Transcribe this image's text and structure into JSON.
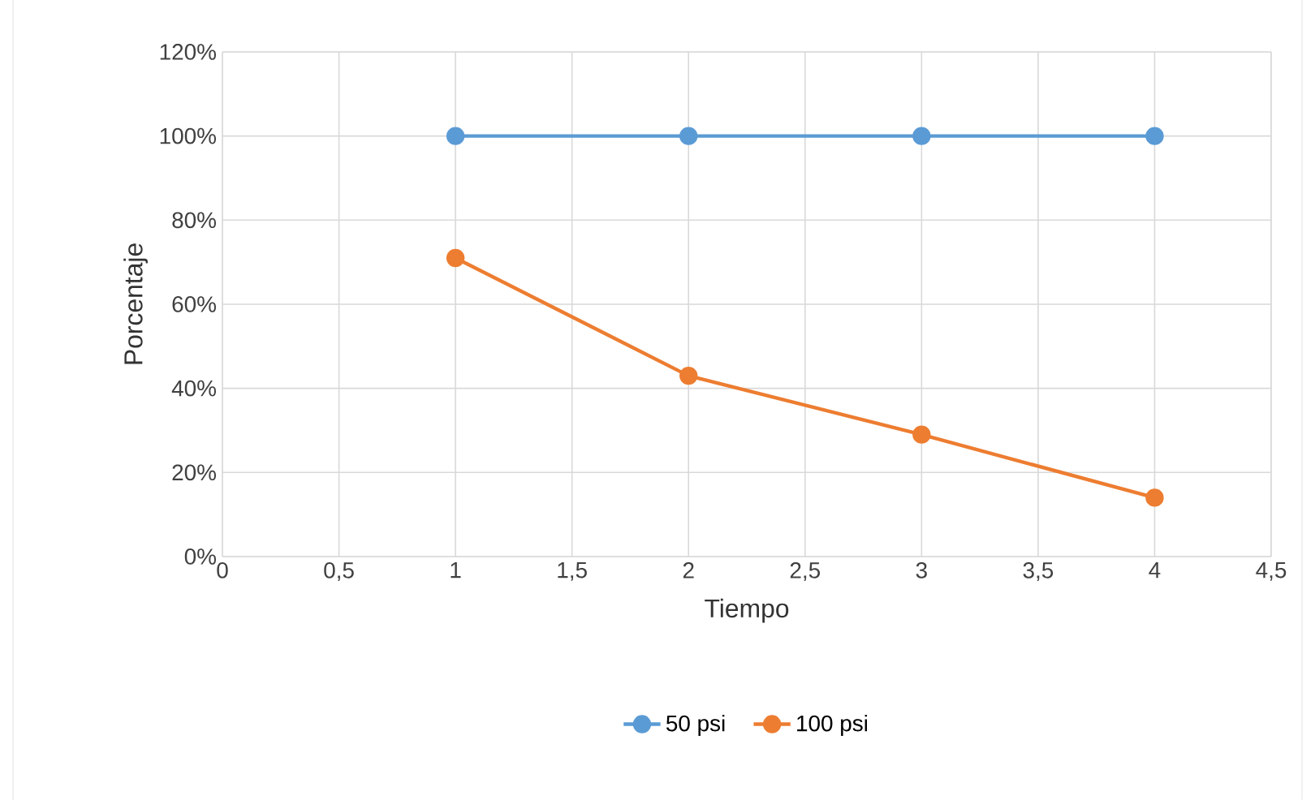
{
  "chart_data": {
    "type": "line",
    "xlabel": "Tiempo",
    "ylabel": "Porcentaje",
    "xlim": [
      0,
      4.5
    ],
    "xticks": [
      0,
      {
        "value": 0.5,
        "label": "0,5"
      },
      1,
      {
        "value": 1.5,
        "label": "1,5"
      },
      2,
      {
        "value": 2.5,
        "label": "2,5"
      },
      3,
      {
        "value": 3.5,
        "label": "3,5"
      },
      4,
      {
        "value": 4.5,
        "label": "4,5"
      }
    ],
    "ylim": [
      0,
      120
    ],
    "yticks": [
      {
        "value": 0,
        "label": "0%"
      },
      {
        "value": 20,
        "label": "20%"
      },
      {
        "value": 40,
        "label": "40%"
      },
      {
        "value": 60,
        "label": "60%"
      },
      {
        "value": 80,
        "label": "80%"
      },
      {
        "value": 100,
        "label": "100%"
      },
      {
        "value": 120,
        "label": "120%"
      }
    ],
    "x": [
      1,
      2,
      3,
      4
    ],
    "series": [
      {
        "name": "50 psi",
        "color": "#5b9bd5",
        "values": [
          100,
          100,
          100,
          100
        ]
      },
      {
        "name": "100 psi",
        "color": "#ed7d31",
        "values": [
          71,
          43,
          29,
          14
        ]
      }
    ],
    "grid": true,
    "legend": "bottom",
    "marker": "circle",
    "line_style": "solid"
  }
}
